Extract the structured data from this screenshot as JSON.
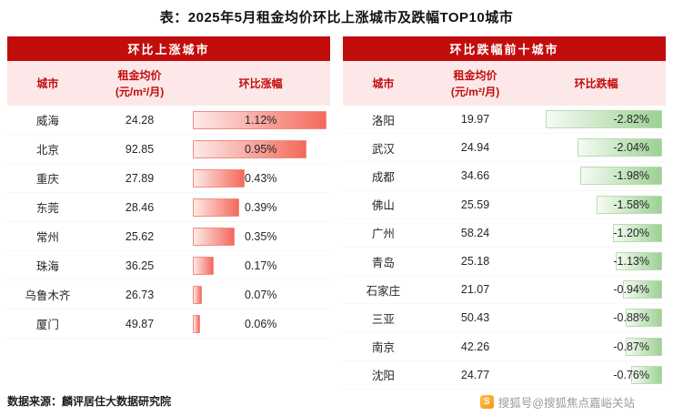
{
  "title": "表：2025年5月租金均价环比上涨城市及跌幅TOP10城市",
  "footer": {
    "source": "数据来源：麟评居住大数据研究院",
    "watermark": "搜狐号@搜狐焦点嘉峪关站",
    "sohu_icon_letter": "S"
  },
  "colors": {
    "header_bar_bg": "#c20d0d",
    "header_row_bg": "#fce8e8",
    "header_text": "#c20d0d",
    "rise_bar_start": "#fdeae8",
    "rise_bar_end": "#f4695c",
    "fall_bar_start": "#f6fbf4",
    "fall_bar_end": "#9cd193"
  },
  "chart_data": [
    {
      "type": "bar",
      "panel_title": "环比上涨城市",
      "columns": {
        "city": "城市",
        "price_line1": "租金均价",
        "price_line2": "(元/m²/月)",
        "pct": "环比涨幅"
      },
      "max_abs_pct": 1.12,
      "legend_position": "none",
      "rows": [
        {
          "city": "威海",
          "price": "24.28",
          "pct_label": "1.12%",
          "pct_value": 1.12
        },
        {
          "city": "北京",
          "price": "92.85",
          "pct_label": "0.95%",
          "pct_value": 0.95
        },
        {
          "city": "重庆",
          "price": "27.89",
          "pct_label": "0.43%",
          "pct_value": 0.43
        },
        {
          "city": "东莞",
          "price": "28.46",
          "pct_label": "0.39%",
          "pct_value": 0.39
        },
        {
          "city": "常州",
          "price": "25.62",
          "pct_label": "0.35%",
          "pct_value": 0.35
        },
        {
          "city": "珠海",
          "price": "36.25",
          "pct_label": "0.17%",
          "pct_value": 0.17
        },
        {
          "city": "乌鲁木齐",
          "price": "26.73",
          "pct_label": "0.07%",
          "pct_value": 0.07
        },
        {
          "city": "厦门",
          "price": "49.87",
          "pct_label": "0.06%",
          "pct_value": 0.06
        }
      ]
    },
    {
      "type": "bar",
      "panel_title": "环比跌幅前十城市",
      "columns": {
        "city": "城市",
        "price_line1": "租金均价",
        "price_line2": "(元/m²/月)",
        "pct": "环比跌幅"
      },
      "max_abs_pct": 2.82,
      "legend_position": "none",
      "rows": [
        {
          "city": "洛阳",
          "price": "19.97",
          "pct_label": "-2.82%",
          "pct_value": -2.82
        },
        {
          "city": "武汉",
          "price": "24.94",
          "pct_label": "-2.04%",
          "pct_value": -2.04
        },
        {
          "city": "成都",
          "price": "34.66",
          "pct_label": "-1.98%",
          "pct_value": -1.98
        },
        {
          "city": "佛山",
          "price": "25.59",
          "pct_label": "-1.58%",
          "pct_value": -1.58
        },
        {
          "city": "广州",
          "price": "58.24",
          "pct_label": "-1.20%",
          "pct_value": -1.2
        },
        {
          "city": "青岛",
          "price": "25.18",
          "pct_label": "-1.13%",
          "pct_value": -1.13
        },
        {
          "city": "石家庄",
          "price": "21.07",
          "pct_label": "-0.94%",
          "pct_value": -0.94
        },
        {
          "city": "三亚",
          "price": "50.43",
          "pct_label": "-0.88%",
          "pct_value": -0.88
        },
        {
          "city": "南京",
          "price": "42.26",
          "pct_label": "-0.87%",
          "pct_value": -0.87
        },
        {
          "city": "沈阳",
          "price": "24.77",
          "pct_label": "-0.76%",
          "pct_value": -0.76
        }
      ]
    }
  ]
}
